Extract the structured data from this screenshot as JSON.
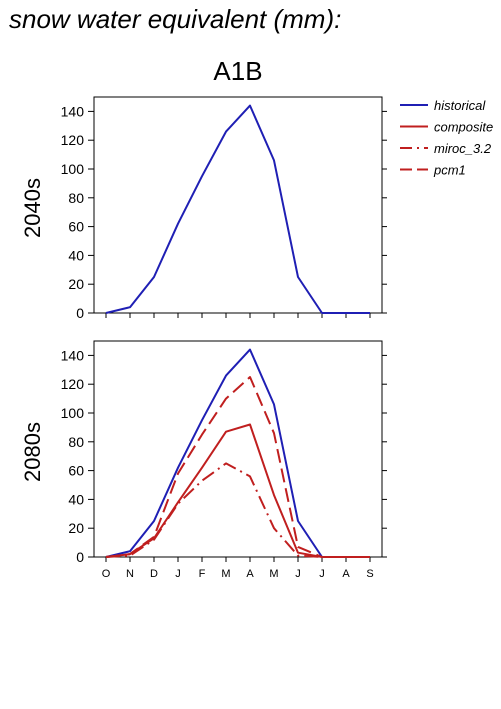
{
  "title": "snow water equivalent (mm):",
  "chart_data": {
    "type": "line",
    "scenario": "A1B",
    "categories": [
      "O",
      "N",
      "D",
      "J",
      "F",
      "M",
      "A",
      "M",
      "J",
      "J",
      "A",
      "S"
    ],
    "ylim": [
      0,
      150
    ],
    "yticks": [
      0,
      20,
      40,
      60,
      80,
      100,
      120,
      140
    ],
    "legend": {
      "placement": "right"
    },
    "colors": {
      "historical": "#1f1fb4",
      "future": "#c01f1f"
    },
    "panels": [
      {
        "label": "2040s",
        "series": [
          {
            "name": "historical",
            "style": "solid",
            "color": "#1f1fb4",
            "values": [
              0,
              4,
              25,
              62,
              95,
              126,
              144,
              106,
              25,
              0,
              0,
              0
            ]
          }
        ]
      },
      {
        "label": "2080s",
        "series": [
          {
            "name": "historical",
            "style": "solid",
            "color": "#1f1fb4",
            "values": [
              0,
              4,
              25,
              62,
              95,
              126,
              144,
              106,
              25,
              0,
              0,
              0
            ]
          },
          {
            "name": "composite",
            "style": "solid",
            "color": "#c01f1f",
            "values": [
              0,
              2,
              13,
              38,
              62,
              87,
              92,
              43,
              3,
              0,
              0,
              0
            ]
          },
          {
            "name": "miroc_3.2",
            "style": "dashdot",
            "color": "#c01f1f",
            "values": [
              0,
              1,
              12,
              37,
              53,
              65,
              56,
              20,
              1,
              0,
              0,
              0
            ]
          },
          {
            "name": "pcm1",
            "style": "dashed",
            "color": "#c01f1f",
            "values": [
              0,
              2,
              14,
              58,
              85,
              110,
              125,
              86,
              7,
              0,
              0,
              0
            ]
          }
        ]
      }
    ],
    "legend_entries": [
      {
        "name": "historical",
        "style": "solid",
        "color": "#1f1fb4"
      },
      {
        "name": "composite",
        "style": "solid",
        "color": "#c01f1f"
      },
      {
        "name": "miroc_3.2",
        "style": "dashdot",
        "color": "#c01f1f"
      },
      {
        "name": "pcm1",
        "style": "dashed",
        "color": "#c01f1f"
      }
    ]
  }
}
